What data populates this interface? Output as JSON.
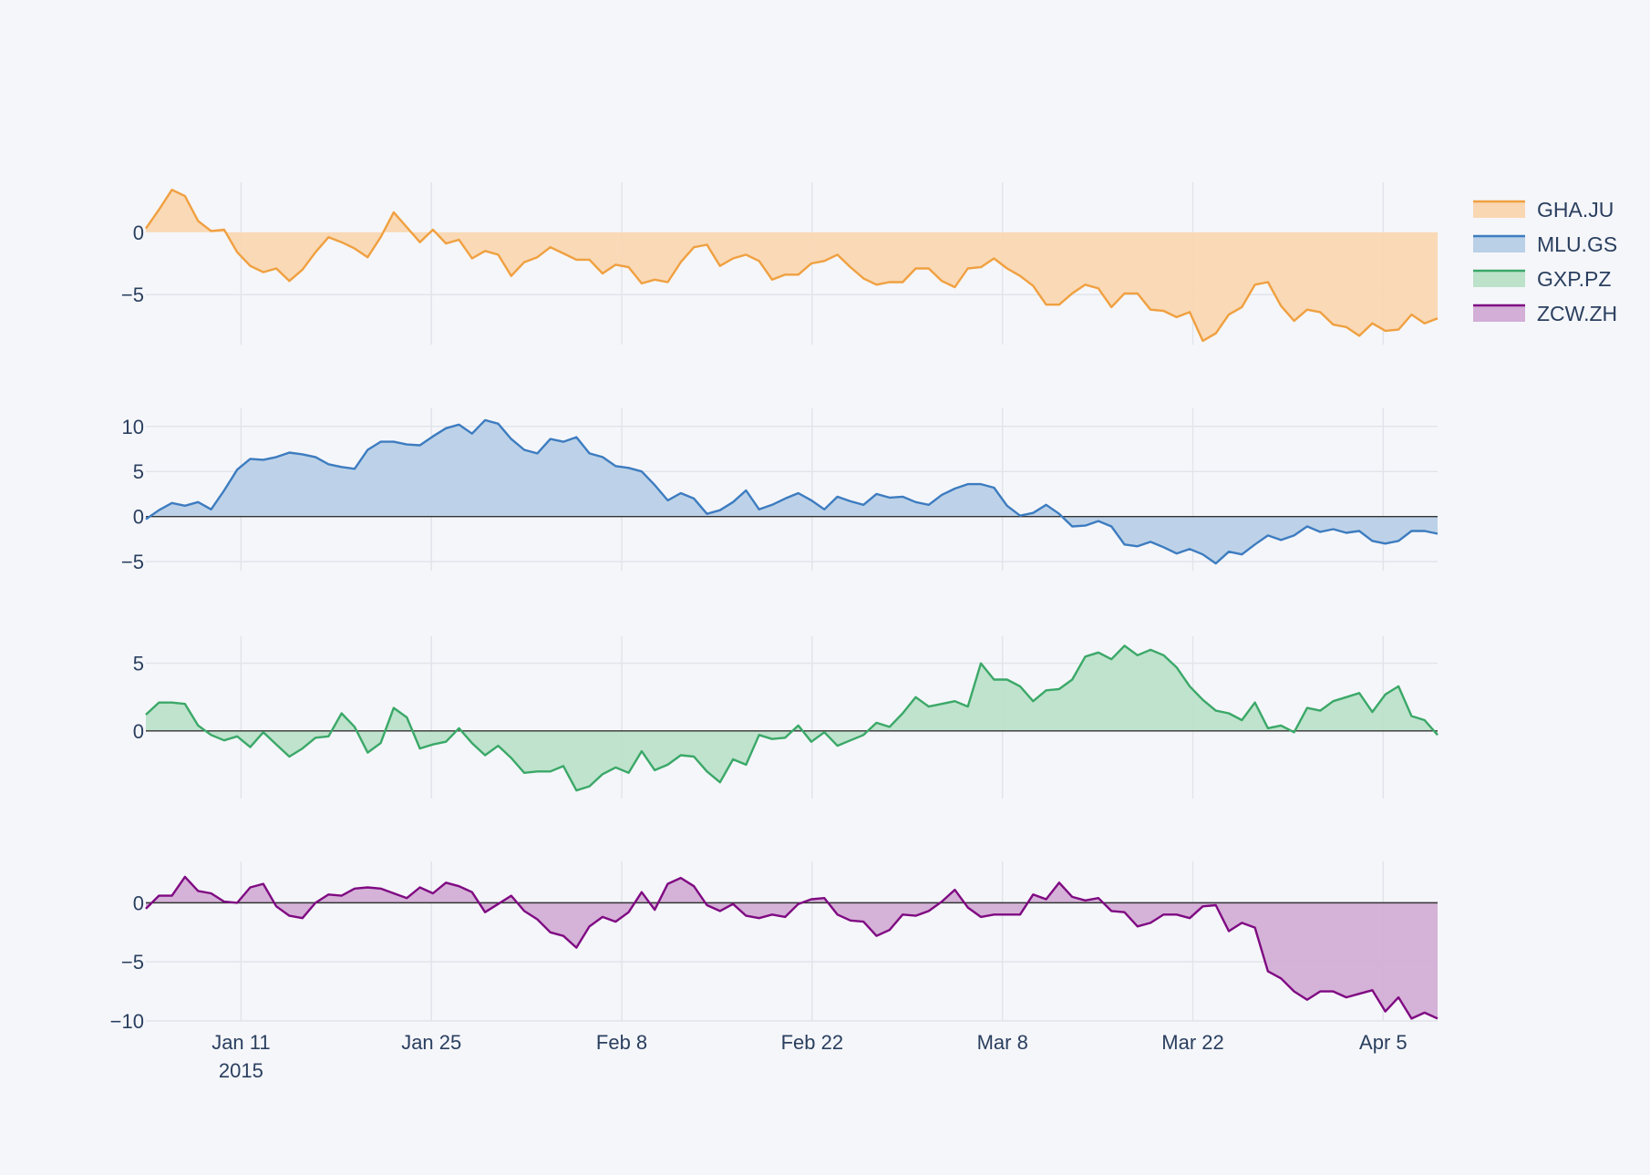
{
  "chart_data": {
    "type": "area",
    "x_start": "2015-01-04",
    "x_end": "2015-04-09",
    "x_ticks": [
      {
        "date": "2015-01-11",
        "label": "Jan 11",
        "sublabel": "2015"
      },
      {
        "date": "2015-01-25",
        "label": "Jan 25",
        "sublabel": ""
      },
      {
        "date": "2015-02-08",
        "label": "Feb 8",
        "sublabel": ""
      },
      {
        "date": "2015-02-22",
        "label": "Feb 22",
        "sublabel": ""
      },
      {
        "date": "2015-03-08",
        "label": "Mar 8",
        "sublabel": ""
      },
      {
        "date": "2015-03-22",
        "label": "Mar 22",
        "sublabel": ""
      },
      {
        "date": "2015-04-05",
        "label": "Apr 5",
        "sublabel": ""
      }
    ],
    "legend_position": "top-right",
    "grid": true,
    "fill": "tozeroy",
    "series": [
      {
        "name": "GHA.JU",
        "color": "#f0a040",
        "fill_color": "#f9d7b2",
        "ylim": [
          -9,
          4
        ],
        "y_ticks": [
          {
            "value": 0,
            "label": "0"
          },
          {
            "value": -5,
            "label": "−5"
          }
        ],
        "values": [
          0.3,
          1.8,
          3.4,
          2.9,
          0.9,
          0.1,
          0.2,
          -1.6,
          -2.7,
          -3.2,
          -2.9,
          -3.9,
          -3.0,
          -1.6,
          -0.4,
          -0.8,
          -1.3,
          -2.0,
          -0.4,
          1.6,
          0.4,
          -0.8,
          0.2,
          -0.9,
          -0.6,
          -2.1,
          -1.5,
          -1.8,
          -3.5,
          -2.4,
          -2.0,
          -1.2,
          -1.7,
          -2.2,
          -2.2,
          -3.3,
          -2.6,
          -2.8,
          -4.1,
          -3.8,
          -4.0,
          -2.4,
          -1.2,
          -1.0,
          -2.7,
          -2.1,
          -1.8,
          -2.3,
          -3.8,
          -3.4,
          -3.4,
          -2.5,
          -2.3,
          -1.8,
          -2.8,
          -3.7,
          -4.2,
          -4.0,
          -4.0,
          -2.9,
          -2.9,
          -3.9,
          -4.4,
          -2.9,
          -2.8,
          -2.1,
          -2.9,
          -3.5,
          -4.3,
          -5.8,
          -5.8,
          -4.9,
          -4.2,
          -4.5,
          -6.0,
          -4.9,
          -4.9,
          -6.2,
          -6.3,
          -6.8,
          -6.4,
          -8.7,
          -8.1,
          -6.6,
          -6.0,
          -4.2,
          -4.0,
          -5.9,
          -7.1,
          -6.2,
          -6.4,
          -7.4,
          -7.6,
          -8.3,
          -7.3,
          -7.9,
          -7.8,
          -6.6,
          -7.3,
          -6.9
        ]
      },
      {
        "name": "MLU.GS",
        "color": "#3d7cc0",
        "fill_color": "#b9d0e7",
        "ylim": [
          -6,
          12
        ],
        "y_ticks": [
          {
            "value": 10,
            "label": "10"
          },
          {
            "value": 5,
            "label": "5"
          },
          {
            "value": 0,
            "label": "0"
          },
          {
            "value": -5,
            "label": "−5"
          }
        ],
        "values": [
          -0.3,
          0.7,
          1.5,
          1.2,
          1.6,
          0.8,
          2.9,
          5.2,
          6.4,
          6.3,
          6.6,
          7.1,
          6.9,
          6.6,
          5.8,
          5.5,
          5.3,
          7.4,
          8.3,
          8.3,
          8.0,
          7.9,
          8.9,
          9.8,
          10.2,
          9.2,
          10.7,
          10.3,
          8.6,
          7.4,
          7.0,
          8.6,
          8.3,
          8.8,
          7.0,
          6.6,
          5.6,
          5.4,
          5.0,
          3.5,
          1.8,
          2.6,
          2.0,
          0.3,
          0.7,
          1.6,
          2.9,
          0.8,
          1.3,
          2.0,
          2.6,
          1.8,
          0.8,
          2.2,
          1.7,
          1.3,
          2.5,
          2.1,
          2.2,
          1.6,
          1.3,
          2.4,
          3.1,
          3.6,
          3.6,
          3.2,
          1.2,
          0.1,
          0.4,
          1.3,
          0.3,
          -1.1,
          -1.0,
          -0.5,
          -1.1,
          -3.1,
          -3.3,
          -2.8,
          -3.4,
          -4.1,
          -3.6,
          -4.2,
          -5.2,
          -3.9,
          -4.2,
          -3.1,
          -2.1,
          -2.6,
          -2.1,
          -1.1,
          -1.7,
          -1.4,
          -1.8,
          -1.6,
          -2.7,
          -3.0,
          -2.7,
          -1.6,
          -1.6,
          -1.9
        ]
      },
      {
        "name": "GXP.PZ",
        "color": "#3ba868",
        "fill_color": "#bce2ca",
        "ylim": [
          -5,
          7
        ],
        "y_ticks": [
          {
            "value": 5,
            "label": "5"
          },
          {
            "value": 0,
            "label": "0"
          }
        ],
        "values": [
          1.2,
          2.1,
          2.1,
          2.0,
          0.4,
          -0.3,
          -0.7,
          -0.4,
          -1.2,
          -0.1,
          -1.0,
          -1.9,
          -1.3,
          -0.5,
          -0.4,
          1.3,
          0.3,
          -1.6,
          -0.9,
          1.7,
          1.0,
          -1.3,
          -1.0,
          -0.8,
          0.2,
          -0.9,
          -1.8,
          -1.1,
          -2.0,
          -3.1,
          -3.0,
          -3.0,
          -2.6,
          -4.4,
          -4.1,
          -3.2,
          -2.7,
          -3.1,
          -1.5,
          -2.9,
          -2.5,
          -1.8,
          -1.9,
          -3.0,
          -3.8,
          -2.1,
          -2.5,
          -0.3,
          -0.6,
          -0.5,
          0.4,
          -0.8,
          -0.1,
          -1.1,
          -0.7,
          -0.3,
          0.6,
          0.3,
          1.3,
          2.5,
          1.8,
          2.0,
          2.2,
          1.8,
          5.0,
          3.8,
          3.8,
          3.3,
          2.2,
          3.0,
          3.1,
          3.8,
          5.5,
          5.8,
          5.3,
          6.3,
          5.6,
          6.0,
          5.6,
          4.7,
          3.3,
          2.3,
          1.5,
          1.3,
          0.8,
          2.1,
          0.2,
          0.4,
          -0.1,
          1.7,
          1.5,
          2.2,
          2.5,
          2.8,
          1.4,
          2.7,
          3.3,
          1.1,
          0.8,
          -0.3
        ]
      },
      {
        "name": "ZCW.ZH",
        "color": "#7f0a82",
        "fill_color": "#d3aed6",
        "ylim": [
          -10,
          3.5
        ],
        "y_ticks": [
          {
            "value": 0,
            "label": "0"
          },
          {
            "value": -5,
            "label": "−5"
          },
          {
            "value": -10,
            "label": "−10"
          }
        ],
        "values": [
          -0.5,
          0.6,
          0.6,
          2.2,
          1.0,
          0.8,
          0.1,
          0.0,
          1.3,
          1.6,
          -0.3,
          -1.1,
          -1.3,
          0.0,
          0.7,
          0.6,
          1.2,
          1.3,
          1.2,
          0.8,
          0.4,
          1.3,
          0.8,
          1.7,
          1.4,
          0.9,
          -0.8,
          -0.1,
          0.6,
          -0.7,
          -1.4,
          -2.5,
          -2.8,
          -3.8,
          -2.0,
          -1.2,
          -1.6,
          -0.8,
          0.9,
          -0.6,
          1.6,
          2.1,
          1.4,
          -0.2,
          -0.7,
          -0.1,
          -1.1,
          -1.3,
          -1.0,
          -1.2,
          -0.1,
          0.3,
          0.4,
          -1.0,
          -1.5,
          -1.6,
          -2.8,
          -2.3,
          -1.0,
          -1.1,
          -0.7,
          0.1,
          1.1,
          -0.4,
          -1.2,
          -1.0,
          -1.0,
          -1.0,
          0.7,
          0.3,
          1.7,
          0.5,
          0.2,
          0.4,
          -0.7,
          -0.8,
          -2.0,
          -1.7,
          -1.0,
          -1.0,
          -1.3,
          -0.3,
          -0.2,
          -2.4,
          -1.7,
          -2.1,
          -5.8,
          -6.4,
          -7.5,
          -8.2,
          -7.5,
          -7.5,
          -8.0,
          -7.7,
          -7.4,
          -9.2,
          -8.0,
          -9.8,
          -9.3,
          -9.8
        ]
      }
    ]
  }
}
